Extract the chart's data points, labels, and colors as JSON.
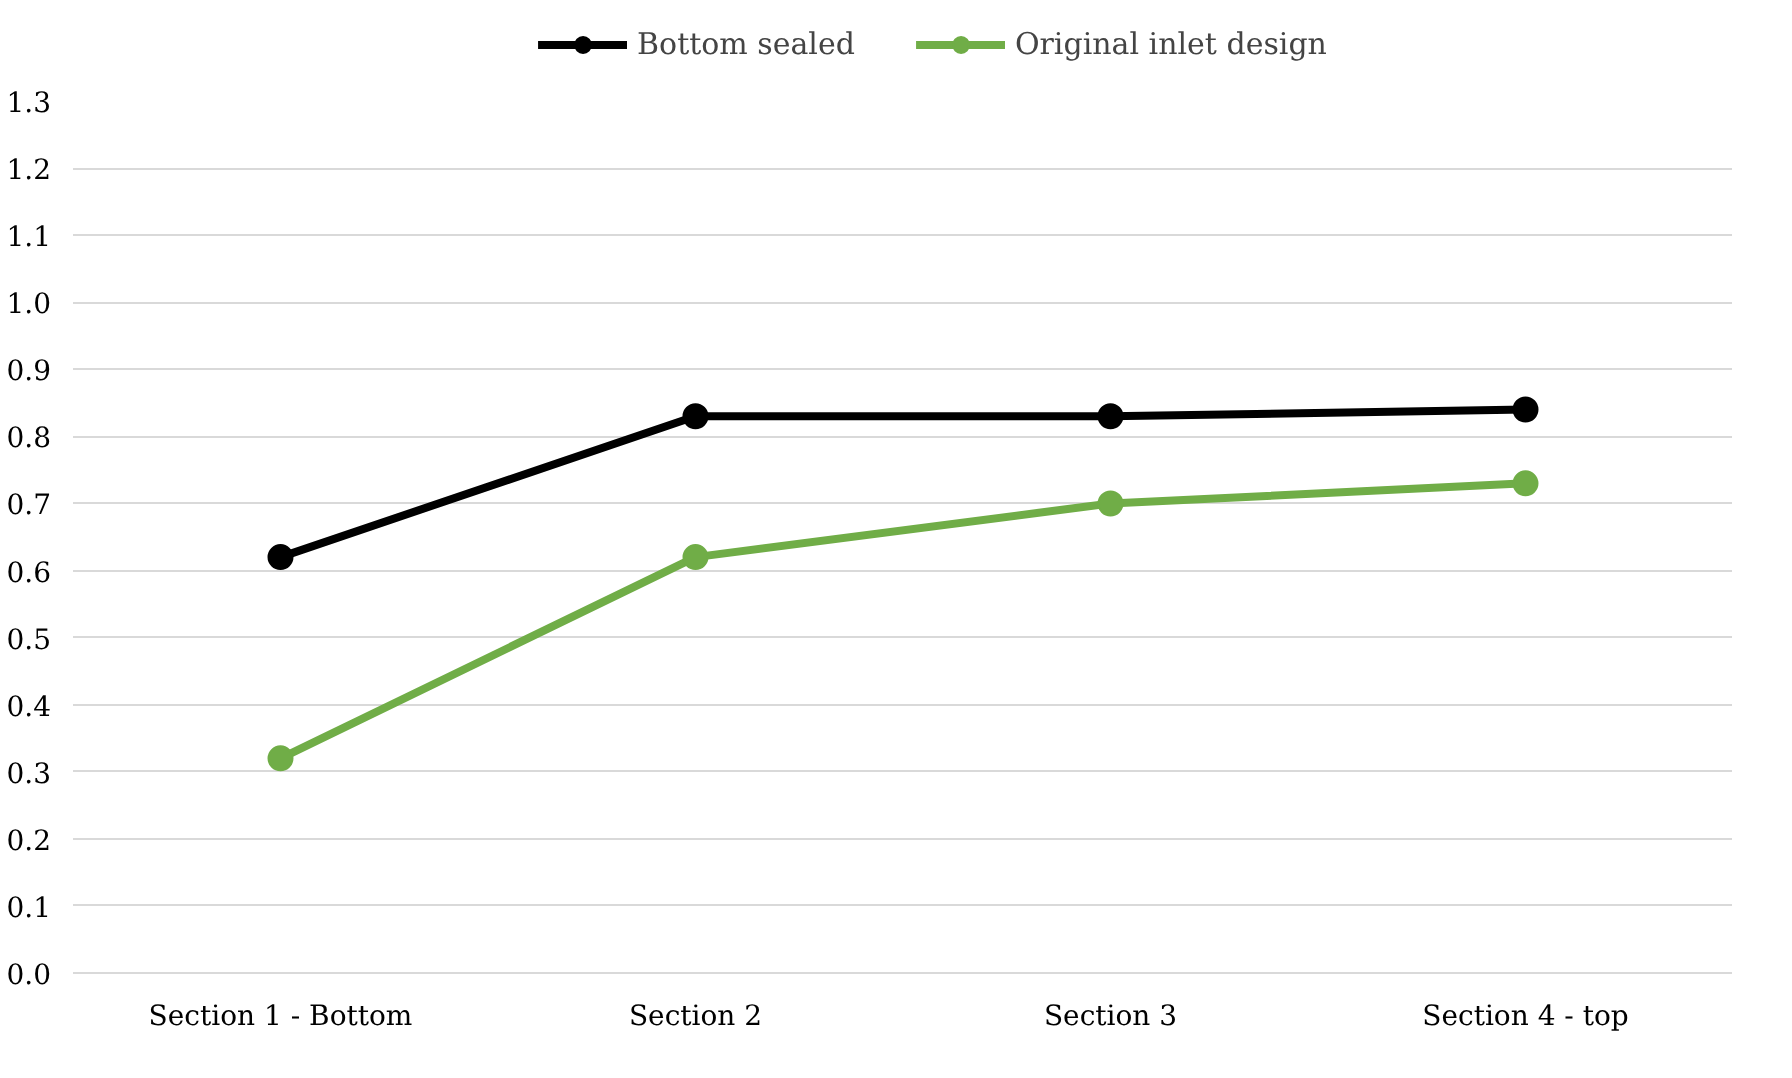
{
  "chart_data": {
    "type": "line",
    "categories": [
      "Section 1 - Bottom",
      "Section 2",
      "Section 3",
      "Section 4 - top"
    ],
    "series": [
      {
        "name": "Bottom sealed",
        "color": "#000000",
        "values": [
          0.62,
          0.83,
          0.83,
          0.84
        ]
      },
      {
        "name": "Original inlet design",
        "color": "#70ad47",
        "values": [
          0.32,
          0.62,
          0.7,
          0.73
        ]
      }
    ],
    "ylim": [
      0,
      1.3
    ],
    "yticks": [
      {
        "value": 0,
        "label": "0.0"
      },
      {
        "value": 0.1,
        "label": "0.1"
      },
      {
        "value": 0.2,
        "label": "0.2"
      },
      {
        "value": 0.3,
        "label": "0.3"
      },
      {
        "value": 0.4,
        "label": "0.4"
      },
      {
        "value": 0.5,
        "label": "0.5"
      },
      {
        "value": 0.6,
        "label": "0.6"
      },
      {
        "value": 0.7,
        "label": "0.7"
      },
      {
        "value": 0.8,
        "label": "0.8"
      },
      {
        "value": 0.9,
        "label": "0.9"
      },
      {
        "value": 1.0,
        "label": "1.0"
      },
      {
        "value": 1.1,
        "label": "1.1"
      },
      {
        "value": 1.2,
        "label": "1.2"
      },
      {
        "value": 1.3,
        "label": "1.3"
      }
    ],
    "grid": "y",
    "legend": "top",
    "marker": "circle",
    "line_style": "solid"
  }
}
